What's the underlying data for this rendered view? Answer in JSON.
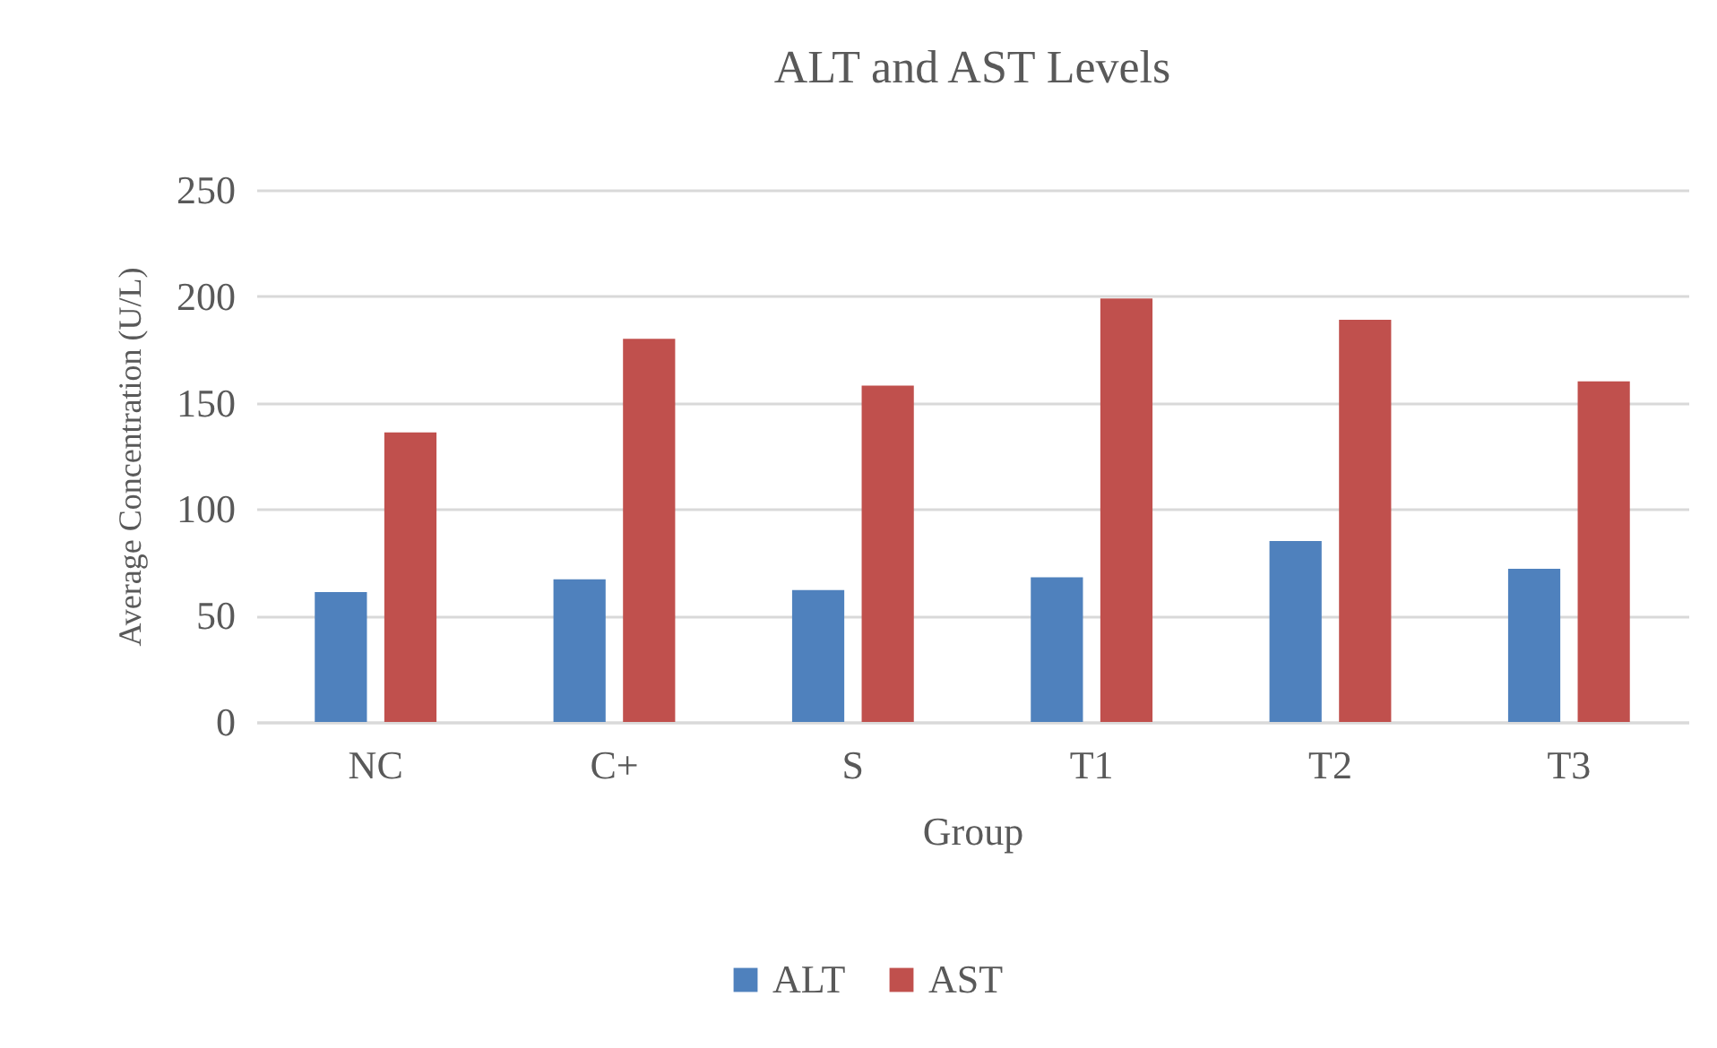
{
  "chart_data": {
    "type": "bar",
    "title": "ALT and AST Levels",
    "xlabel": "Group",
    "ylabel": "Average Concentration (U/L)",
    "categories": [
      "NC",
      "C+",
      "S",
      "T1",
      "T2",
      "T3"
    ],
    "series": [
      {
        "name": "ALT",
        "color": "#4f81bd",
        "values": [
          61,
          67,
          62,
          68,
          85,
          72
        ]
      },
      {
        "name": "AST",
        "color": "#c0504d",
        "values": [
          136,
          180,
          158,
          199,
          189,
          160
        ]
      }
    ],
    "ylim": [
      0,
      250
    ],
    "yticks": [
      0,
      50,
      100,
      150,
      200,
      250
    ],
    "grid": "y",
    "legend": "bottom"
  }
}
